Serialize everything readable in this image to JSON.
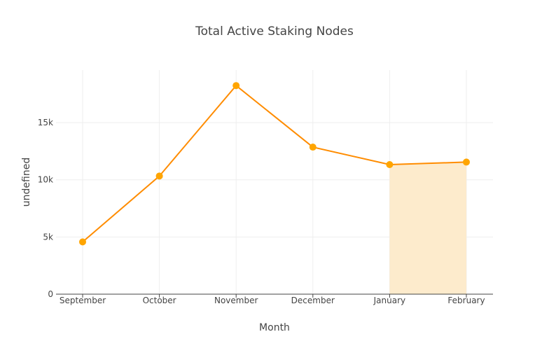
{
  "chart_data": {
    "type": "line",
    "title": "Total Active Staking Nodes",
    "xlabel": "Month",
    "ylabel": "undefined",
    "categories": [
      "September",
      "October",
      "November",
      "December",
      "January",
      "February"
    ],
    "values": [
      4570,
      10330,
      18240,
      12860,
      11330,
      11550
    ],
    "ylim": [
      0,
      19600
    ],
    "yticks": [
      0,
      5000,
      10000,
      15000
    ],
    "ytick_labels": [
      "0",
      "5k",
      "10k",
      "15k"
    ],
    "highlight_range": [
      "January",
      "February"
    ],
    "grid": true,
    "legend": "none",
    "colors": {
      "line": "#ff8c00",
      "marker": "#ffa500",
      "highlight": "#fdebcc"
    }
  }
}
